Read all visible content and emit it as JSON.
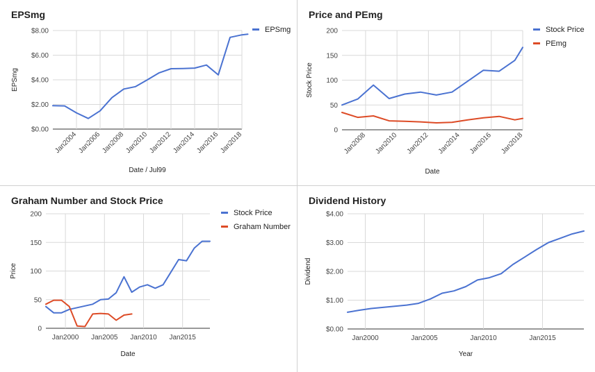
{
  "chart_data": [
    {
      "type": "line",
      "title": "EPSmg",
      "xlabel": "Date / Jul99",
      "ylabel": "EPSmg",
      "x_tick_labels": [
        "Jan2004",
        "Jan2006",
        "Jan2008",
        "Jan2010",
        "Jan2012",
        "Jan2014",
        "Jan2016",
        "Jan2018"
      ],
      "x_ticks": [
        2004,
        2006,
        2008,
        2010,
        2012,
        2014,
        2016,
        2018
      ],
      "y_tick_labels": [
        "$0.00",
        "$2.00",
        "$4.00",
        "$6.00",
        "$8.00"
      ],
      "y_ticks": [
        0,
        2,
        4,
        6,
        8
      ],
      "xlim": [
        2002,
        2018
      ],
      "ylim": [
        0,
        8
      ],
      "x_label_rotate": true,
      "vertical_grid": true,
      "legend_position": "top-right",
      "series": [
        {
          "name": "EPSmg",
          "color": "#4a72d1",
          "x": [
            2002,
            2003,
            2004,
            2005,
            2006,
            2007,
            2008,
            2009,
            2010,
            2011,
            2012,
            2013,
            2014,
            2015,
            2016,
            2017,
            2018,
            2018.5
          ],
          "y": [
            1.9,
            1.88,
            1.32,
            0.86,
            1.48,
            2.55,
            3.25,
            3.45,
            4.0,
            4.57,
            4.9,
            4.92,
            4.95,
            5.2,
            4.4,
            7.45,
            7.65,
            7.7
          ]
        }
      ]
    },
    {
      "type": "line",
      "title": "Price and PEmg",
      "xlabel": "Date",
      "ylabel": "Stock Price",
      "x_tick_labels": [
        "Jan2008",
        "Jan2010",
        "Jan2012",
        "Jan2014",
        "Jan2016",
        "Jan2018"
      ],
      "x_ticks": [
        2008,
        2010,
        2012,
        2014,
        2016,
        2018
      ],
      "y_tick_labels": [
        "0",
        "50",
        "100",
        "150",
        "200"
      ],
      "y_ticks": [
        0,
        50,
        100,
        150,
        200
      ],
      "xlim": [
        2006.5,
        2018
      ],
      "ylim": [
        0,
        200
      ],
      "x_label_rotate": true,
      "vertical_grid": true,
      "legend_position": "top-right",
      "series": [
        {
          "name": "Stock Price",
          "color": "#4a72d1",
          "x": [
            2006.5,
            2007.5,
            2008.5,
            2009.5,
            2010.5,
            2011.5,
            2012.5,
            2013.5,
            2014.5,
            2015.5,
            2016.5,
            2017.5,
            2018
          ],
          "y": [
            50,
            62,
            90,
            63,
            72,
            76,
            70,
            76,
            98,
            120,
            118,
            140,
            166
          ]
        },
        {
          "name": "PEmg",
          "color": "#dd4b26",
          "x": [
            2006.5,
            2007.5,
            2008.5,
            2009.5,
            2010.5,
            2011.5,
            2012.5,
            2013.5,
            2014.5,
            2015.5,
            2016.5,
            2017.5,
            2018
          ],
          "y": [
            35,
            25,
            28,
            18,
            17,
            16,
            14,
            15,
            20,
            24,
            27,
            20,
            23
          ]
        }
      ]
    },
    {
      "type": "line",
      "title": "Graham Number and Stock Price",
      "xlabel": "Date",
      "ylabel": "Price",
      "x_tick_labels": [
        "Jan2000",
        "Jan2005",
        "Jan2010",
        "Jan2015"
      ],
      "x_ticks": [
        2000,
        2005,
        2010,
        2015
      ],
      "y_tick_labels": [
        "0",
        "50",
        "100",
        "150",
        "200"
      ],
      "y_ticks": [
        0,
        50,
        100,
        150,
        200
      ],
      "xlim": [
        1997.5,
        2018.5
      ],
      "ylim": [
        0,
        200
      ],
      "x_label_rotate": false,
      "vertical_grid": true,
      "legend_position": "top-right",
      "series": [
        {
          "name": "Stock Price",
          "color": "#4a72d1",
          "x": [
            1997.5,
            1998.5,
            1999.5,
            2000.5,
            2001.5,
            2002.5,
            2003.5,
            2004.5,
            2005.5,
            2006.5,
            2007.5,
            2008.5,
            2009.5,
            2010.5,
            2011.5,
            2012.5,
            2013.5,
            2014.5,
            2015.5,
            2016.5,
            2017.5,
            2018.5
          ],
          "y": [
            38,
            27,
            27,
            33,
            36,
            39,
            42,
            50,
            51,
            62,
            90,
            63,
            72,
            76,
            70,
            76,
            98,
            120,
            118,
            140,
            152,
            152
          ]
        },
        {
          "name": "Graham Number",
          "color": "#dd4b26",
          "x": [
            1997.5,
            1998.5,
            1999.5,
            2000.5,
            2001.5,
            2002.5,
            2003.5,
            2004.5,
            2005.5,
            2006.5,
            2007.5,
            2008.5
          ],
          "y": [
            42,
            49,
            49,
            38,
            4,
            3,
            25,
            26,
            25,
            14,
            23,
            25
          ]
        }
      ]
    },
    {
      "type": "line",
      "title": "Dividend History",
      "xlabel": "Year",
      "ylabel": "Dividend",
      "x_tick_labels": [
        "Jan2000",
        "Jan2005",
        "Jan2010",
        "Jan2015"
      ],
      "x_ticks": [
        2000,
        2005,
        2010,
        2015
      ],
      "y_tick_labels": [
        "$0.00",
        "$1.00",
        "$2.00",
        "$3.00",
        "$4.00"
      ],
      "y_ticks": [
        0,
        1,
        2,
        3,
        4
      ],
      "xlim": [
        1998.5,
        2018.5
      ],
      "ylim": [
        0,
        4
      ],
      "x_label_rotate": false,
      "vertical_grid": true,
      "legend_position": "none",
      "series": [
        {
          "color": "#4a72d1",
          "x": [
            1998.5,
            1999.5,
            2000.5,
            2001.5,
            2002.5,
            2003.5,
            2004.5,
            2005.5,
            2006.5,
            2007.5,
            2008.5,
            2009.5,
            2010.5,
            2011.5,
            2012.5,
            2013.5,
            2014.5,
            2015.5,
            2016.5,
            2017.5,
            2018.5
          ],
          "y": [
            0.58,
            0.65,
            0.71,
            0.75,
            0.79,
            0.83,
            0.89,
            1.04,
            1.24,
            1.32,
            1.47,
            1.7,
            1.78,
            1.92,
            2.24,
            2.5,
            2.76,
            3.0,
            3.15,
            3.3,
            3.4
          ]
        }
      ]
    }
  ]
}
